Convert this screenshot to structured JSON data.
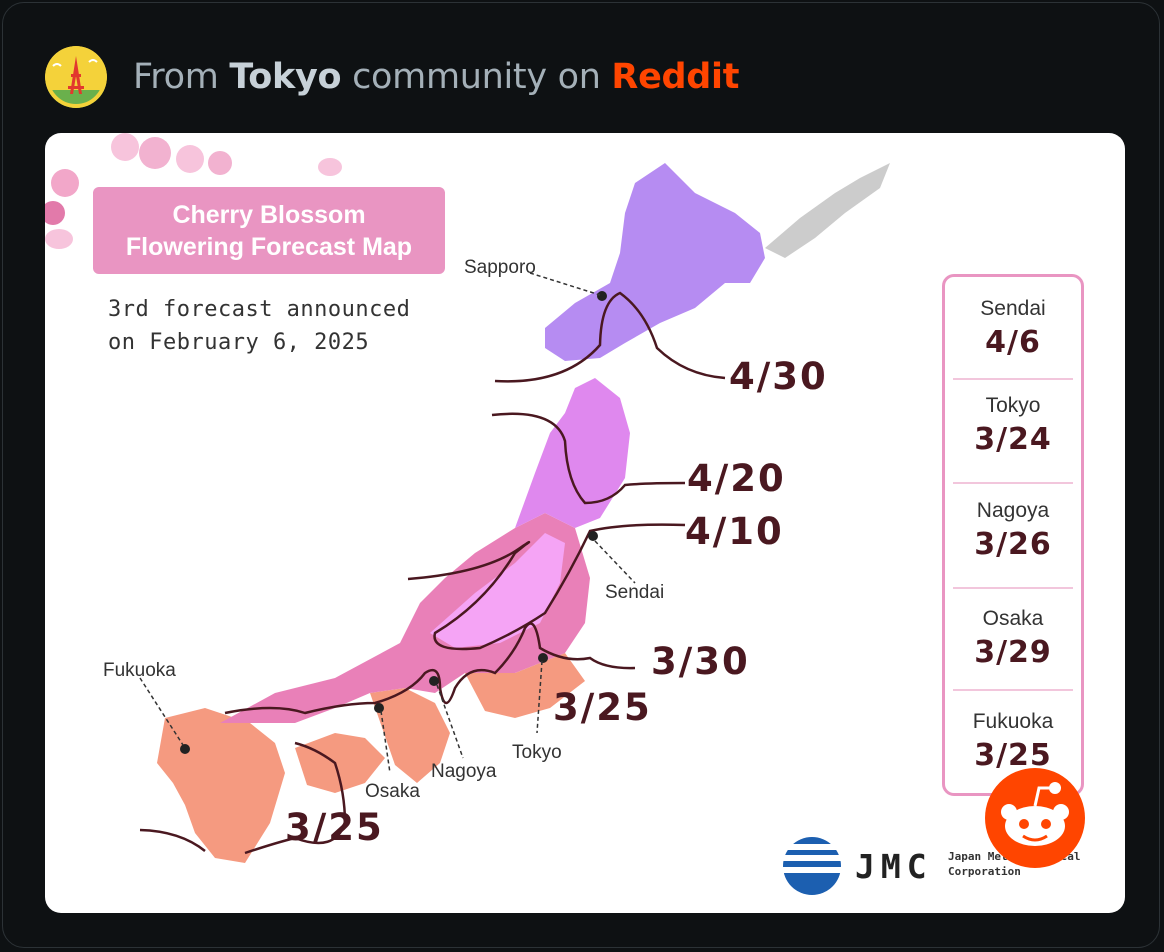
{
  "post": {
    "prefix": "From",
    "community": "Tokyo",
    "middle": "community on",
    "brand": "Reddit"
  },
  "map": {
    "title_line1": "Cherry Blossom",
    "title_line2": "Flowering Forecast Map",
    "subtitle_line1": "3rd forecast announced",
    "subtitle_line2": "on February 6, 2025",
    "cities": {
      "sapporo": "Sapporo",
      "sendai": "Sendai",
      "fukuoka": "Fukuoka",
      "osaka": "Osaka",
      "nagoya": "Nagoya",
      "tokyo": "Tokyo"
    },
    "isolines": {
      "d430": "4/30",
      "d420": "4/20",
      "d410": "4/10",
      "d330": "3/30",
      "d325_east": "3/25",
      "d325_south": "3/25"
    },
    "panel": [
      {
        "city": "Sendai",
        "date": "4/6"
      },
      {
        "city": "Tokyo",
        "date": "3/24"
      },
      {
        "city": "Nagoya",
        "date": "3/26"
      },
      {
        "city": "Osaka",
        "date": "3/29"
      },
      {
        "city": "Fukuoka",
        "date": "3/25"
      }
    ],
    "logo": {
      "abbr": "JMC",
      "org_line1": "Japan Meteorological",
      "org_line2": "Corporation"
    }
  },
  "colors": {
    "background": "#0e1113",
    "brand": "#ff4500",
    "title_box": "#e995c2",
    "date_text": "#4a1820",
    "zone_hokkaido": "#b68cf2",
    "zone_tohoku": "#df88ee",
    "zone_mountain": "#f5a4f5",
    "zone_central": "#e980b8",
    "zone_south": "#f59a80"
  }
}
